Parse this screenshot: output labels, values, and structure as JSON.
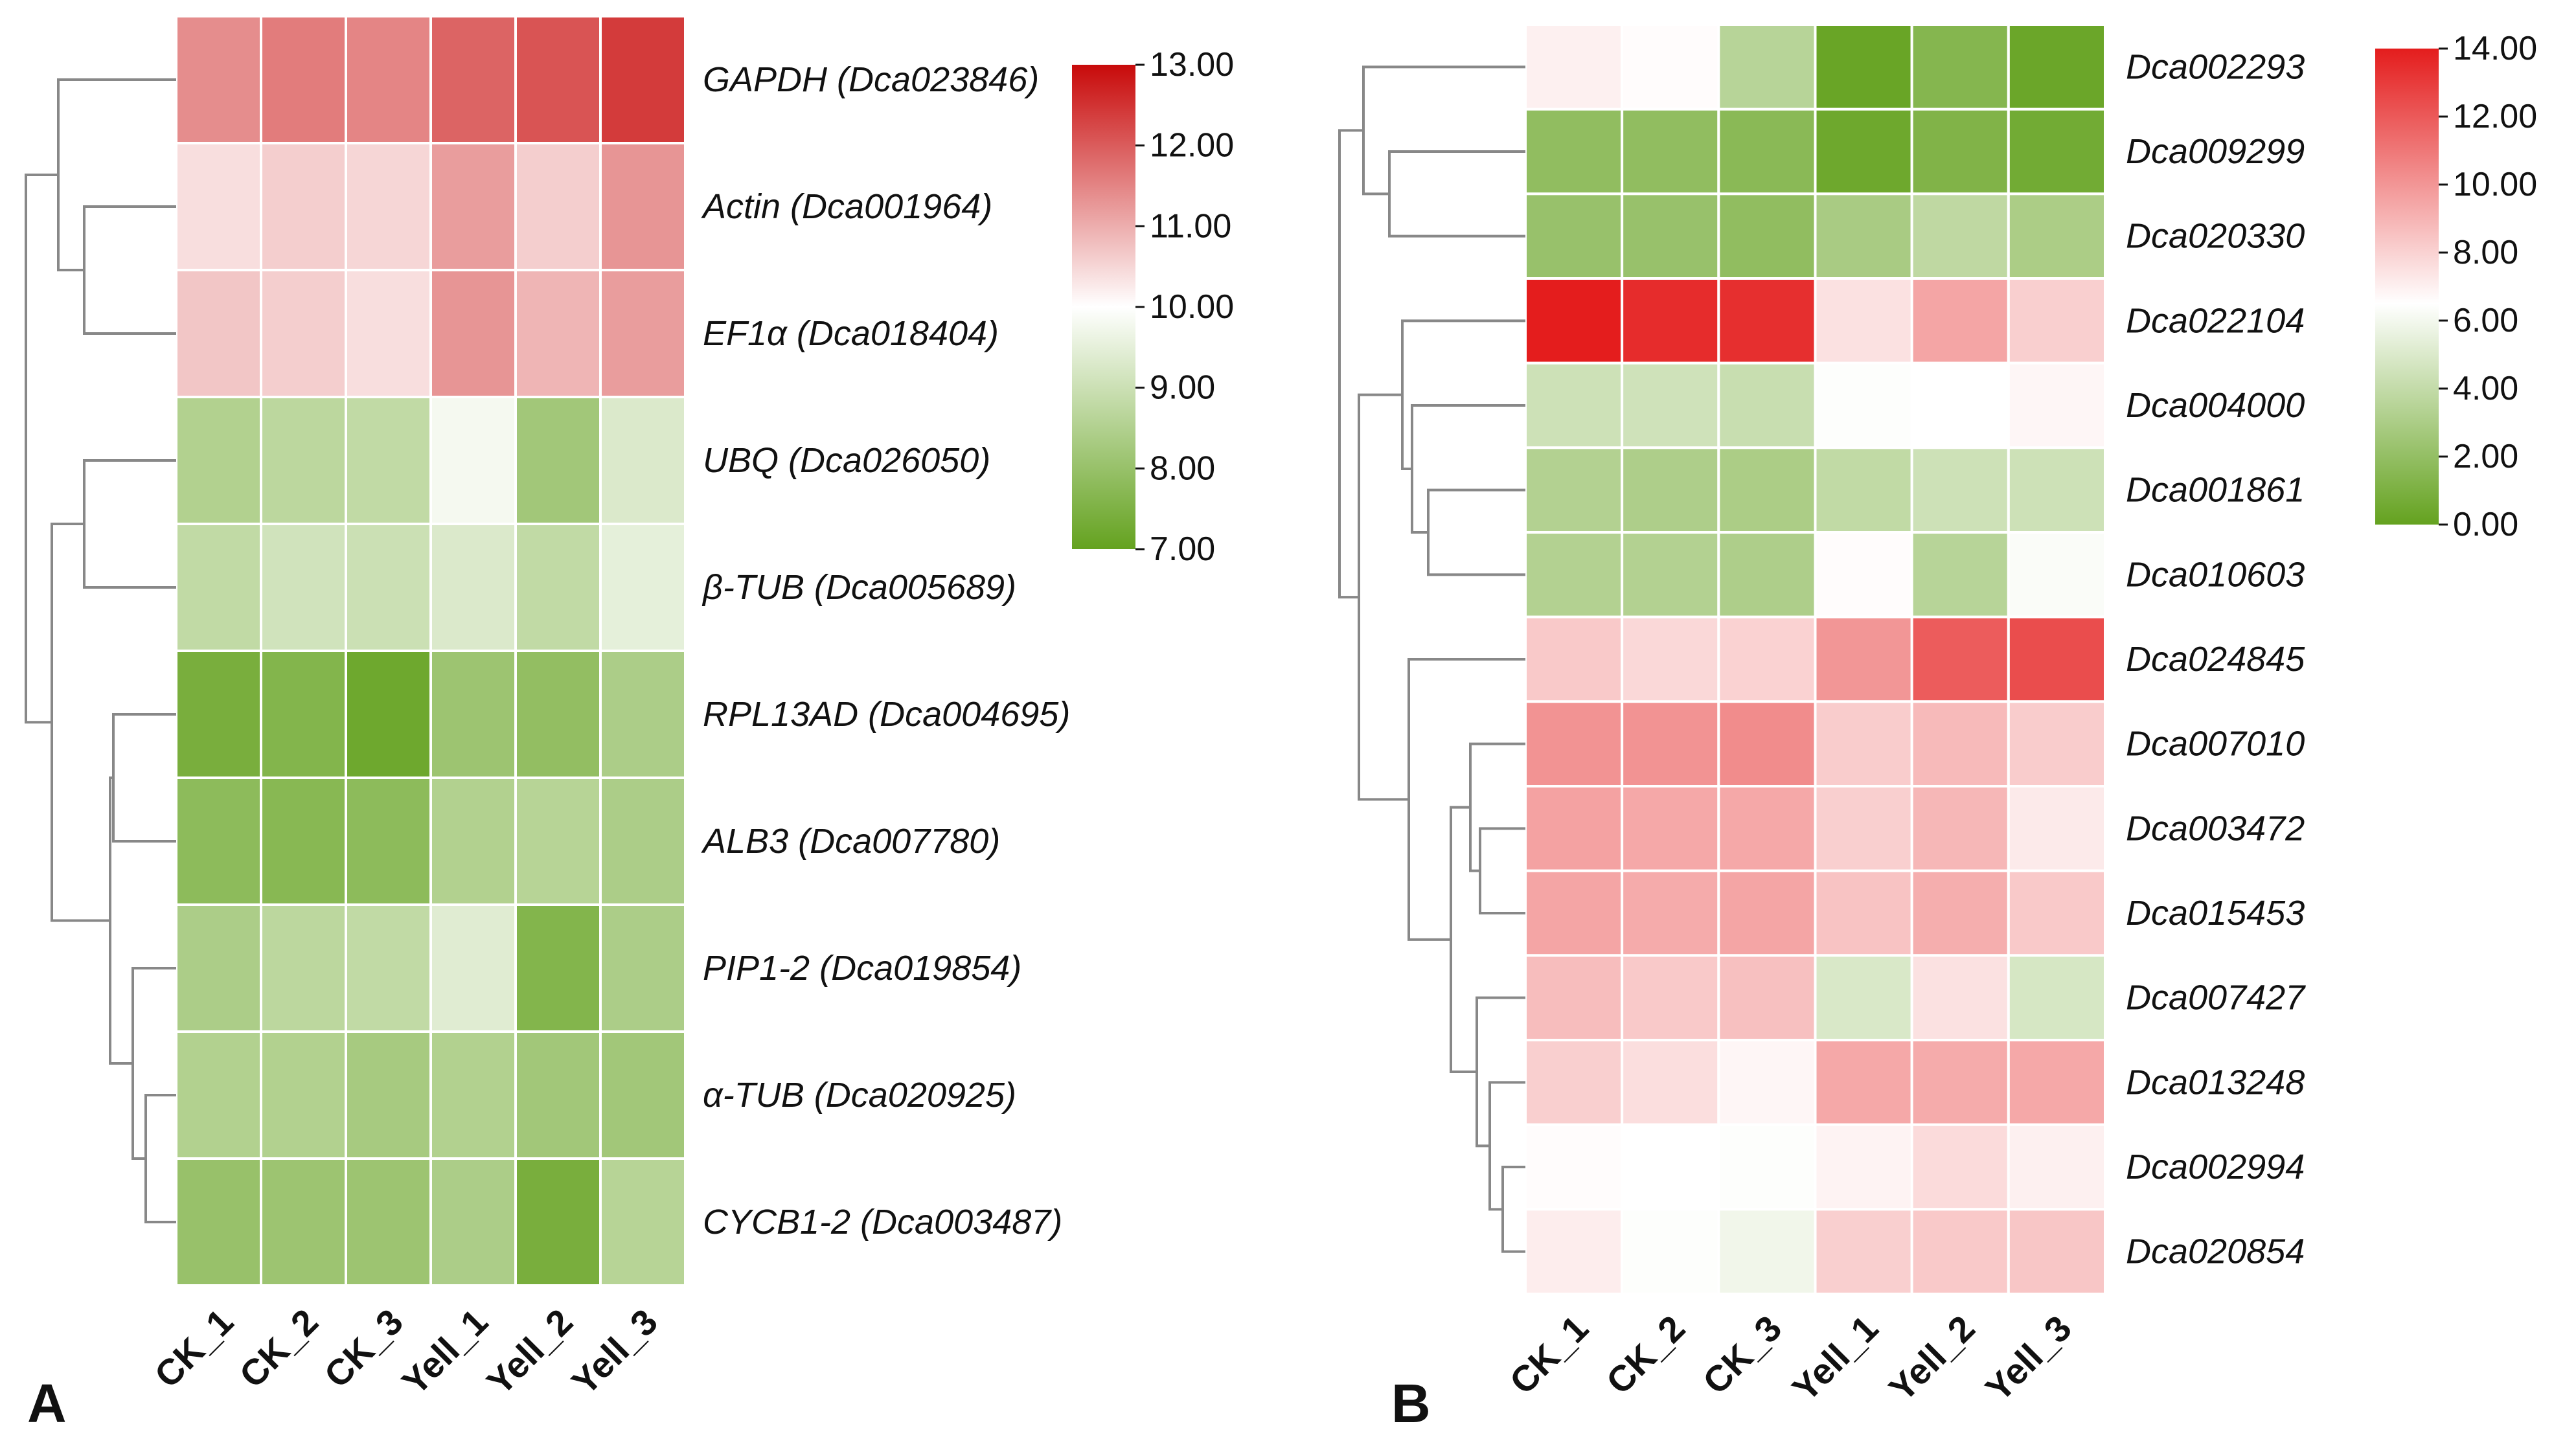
{
  "chart_data": [
    {
      "type": "heatmap",
      "panel": "A",
      "title": "",
      "xlabel": "",
      "ylabel": "",
      "columns": [
        "CK_1",
        "CK_2",
        "CK_3",
        "Yell_1",
        "Yell_2",
        "Yell_3"
      ],
      "rows": [
        "GAPDH (Dca023846)",
        "Actin (Dca001964)",
        "EF1α (Dca018404)",
        "UBQ (Dca026050)",
        "β-TUB (Dca005689)",
        "RPL13AD (Dca004695)",
        "ALB3 (Dca007780)",
        "PIP1-2 (Dca019854)",
        "α-TUB (Dca020925)",
        "CYCB1-2 (Dca003487)"
      ],
      "values": [
        [
          11.4,
          11.6,
          11.5,
          11.9,
          12.1,
          12.4
        ],
        [
          10.4,
          10.6,
          10.5,
          11.2,
          10.6,
          11.3
        ],
        [
          10.7,
          10.6,
          10.4,
          11.3,
          10.9,
          11.2
        ],
        [
          8.5,
          8.7,
          8.8,
          9.8,
          8.2,
          9.3
        ],
        [
          8.8,
          9.1,
          9.0,
          9.3,
          8.8,
          9.5
        ],
        [
          7.4,
          7.6,
          7.2,
          8.1,
          7.9,
          8.4
        ],
        [
          7.8,
          7.7,
          7.8,
          8.5,
          8.6,
          8.4
        ],
        [
          8.4,
          8.7,
          8.8,
          9.4,
          7.6,
          8.4
        ],
        [
          8.5,
          8.5,
          8.3,
          8.5,
          8.2,
          8.2
        ],
        [
          8.0,
          8.1,
          8.1,
          8.4,
          7.4,
          8.6
        ]
      ],
      "colorbar": {
        "min": 7.0,
        "max": 13.0,
        "mid": 10.0,
        "ticks": [
          "13.00",
          "12.00",
          "11.00",
          "10.00",
          "9.00",
          "8.00",
          "7.00"
        ],
        "colors": {
          "low": "#64a21f",
          "mid": "#ffffff",
          "high": "#c80a0a"
        }
      }
    },
    {
      "type": "heatmap",
      "panel": "B",
      "title": "",
      "xlabel": "",
      "ylabel": "",
      "columns": [
        "CK_1",
        "CK_2",
        "CK_3",
        "Yell_1",
        "Yell_2",
        "Yell_3"
      ],
      "rows": [
        "Dca002293",
        "Dca009299",
        "Dca020330",
        "Dca022104",
        "Dca004000",
        "Dca001861",
        "Dca010603",
        "Dca024845",
        "Dca007010",
        "Dca003472",
        "Dca015453",
        "Dca007427",
        "Dca013248",
        "Dca002994",
        "Dca020854"
      ],
      "values": [
        [
          7.0,
          6.6,
          3.5,
          0.2,
          1.4,
          0.3
        ],
        [
          1.9,
          1.9,
          1.6,
          0.4,
          1.2,
          0.6
        ],
        [
          2.2,
          2.2,
          1.9,
          2.9,
          3.8,
          3.0
        ],
        [
          14.0,
          13.5,
          13.4,
          7.5,
          9.5,
          8.1
        ],
        [
          4.4,
          4.5,
          4.2,
          6.4,
          6.5,
          6.8
        ],
        [
          3.3,
          3.1,
          3.0,
          3.9,
          4.4,
          4.4
        ],
        [
          3.3,
          3.3,
          3.1,
          6.6,
          3.5,
          6.3
        ],
        [
          8.3,
          7.8,
          8.0,
          10.0,
          11.9,
          12.4
        ],
        [
          10.1,
          10.1,
          10.3,
          8.2,
          8.8,
          8.2
        ],
        [
          9.6,
          9.4,
          9.4,
          8.1,
          8.9,
          7.2
        ],
        [
          9.5,
          9.3,
          9.5,
          8.5,
          9.2,
          8.3
        ],
        [
          8.7,
          8.3,
          8.6,
          4.9,
          7.5,
          4.8
        ],
        [
          8.1,
          7.6,
          6.8,
          9.4,
          9.3,
          9.4
        ],
        [
          6.6,
          6.5,
          6.4,
          6.9,
          7.7,
          7.0
        ],
        [
          7.1,
          6.4,
          5.9,
          8.1,
          8.3,
          8.4
        ]
      ],
      "colorbar": {
        "min": 0.0,
        "max": 14.0,
        "mid": 6.5,
        "ticks": [
          "14.00",
          "12.00",
          "10.00",
          "8.00",
          "6.00",
          "4.00",
          "2.00",
          "0.00"
        ],
        "colors": {
          "low": "#64a21f",
          "mid": "#ffffff",
          "high": "#e41d1d"
        }
      }
    }
  ]
}
